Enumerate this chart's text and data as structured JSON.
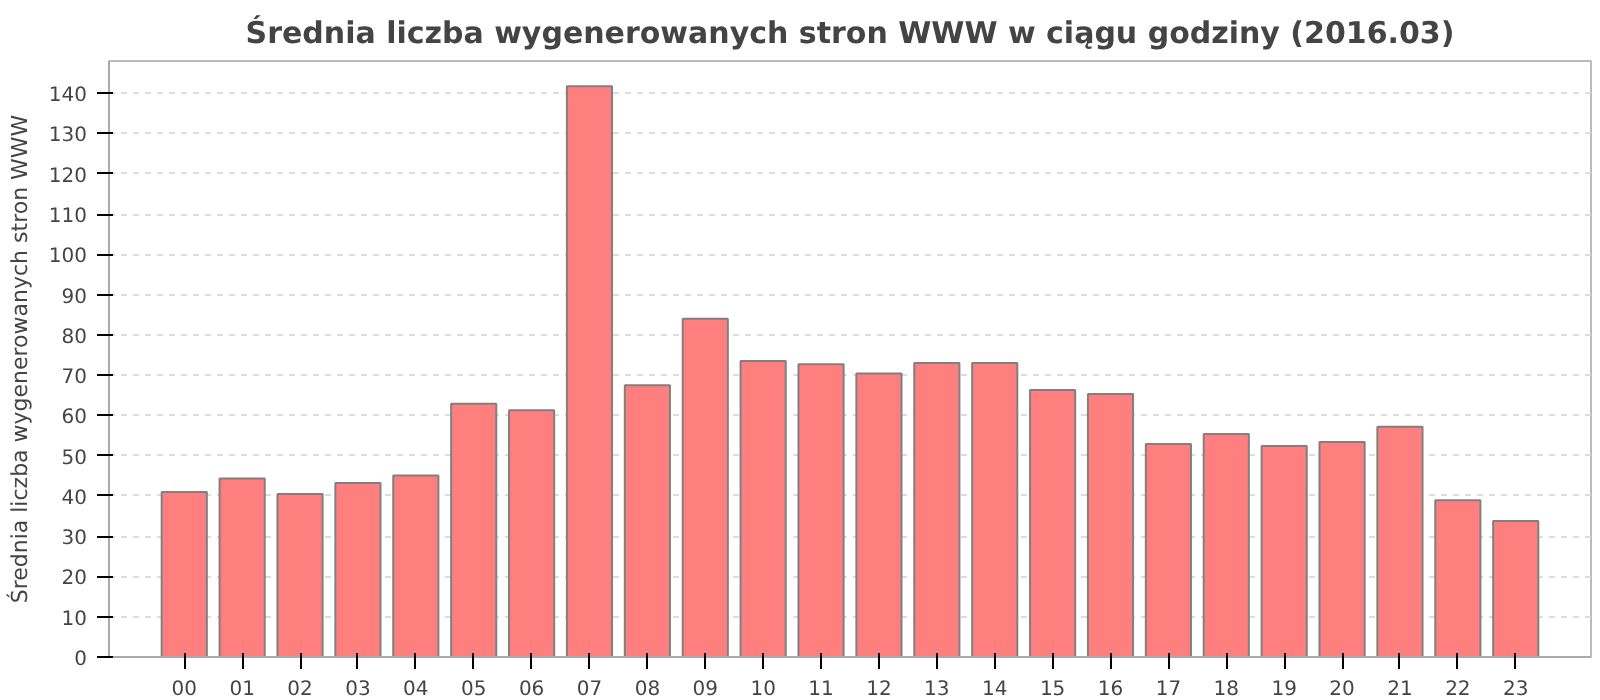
{
  "chart_data": {
    "type": "bar",
    "title": "Średnia liczba wygenerowanych stron WWW w ciągu godziny (2016.03)",
    "ylabel": "Średnia liczba wygenerowanych stron WWW",
    "categories": [
      "00",
      "01",
      "02",
      "03",
      "04",
      "05",
      "06",
      "07",
      "08",
      "09",
      "10",
      "11",
      "12",
      "13",
      "14",
      "15",
      "16",
      "17",
      "18",
      "19",
      "20",
      "21",
      "22",
      "23"
    ],
    "values": [
      41,
      44.3,
      40.5,
      43.2,
      45.1,
      62.9,
      61.3,
      141.7,
      67.5,
      84,
      73.5,
      72.7,
      70.4,
      73,
      73,
      66.3,
      65.3,
      52.9,
      55.4,
      52.4,
      53.4,
      57.2,
      38.9,
      33.8
    ],
    "color": "#ff7f7f",
    "ylim": [
      0,
      148
    ],
    "yticks": [
      0,
      10,
      20,
      30,
      40,
      50,
      60,
      70,
      80,
      90,
      100,
      110,
      120,
      130,
      140
    ],
    "grid": "y"
  }
}
